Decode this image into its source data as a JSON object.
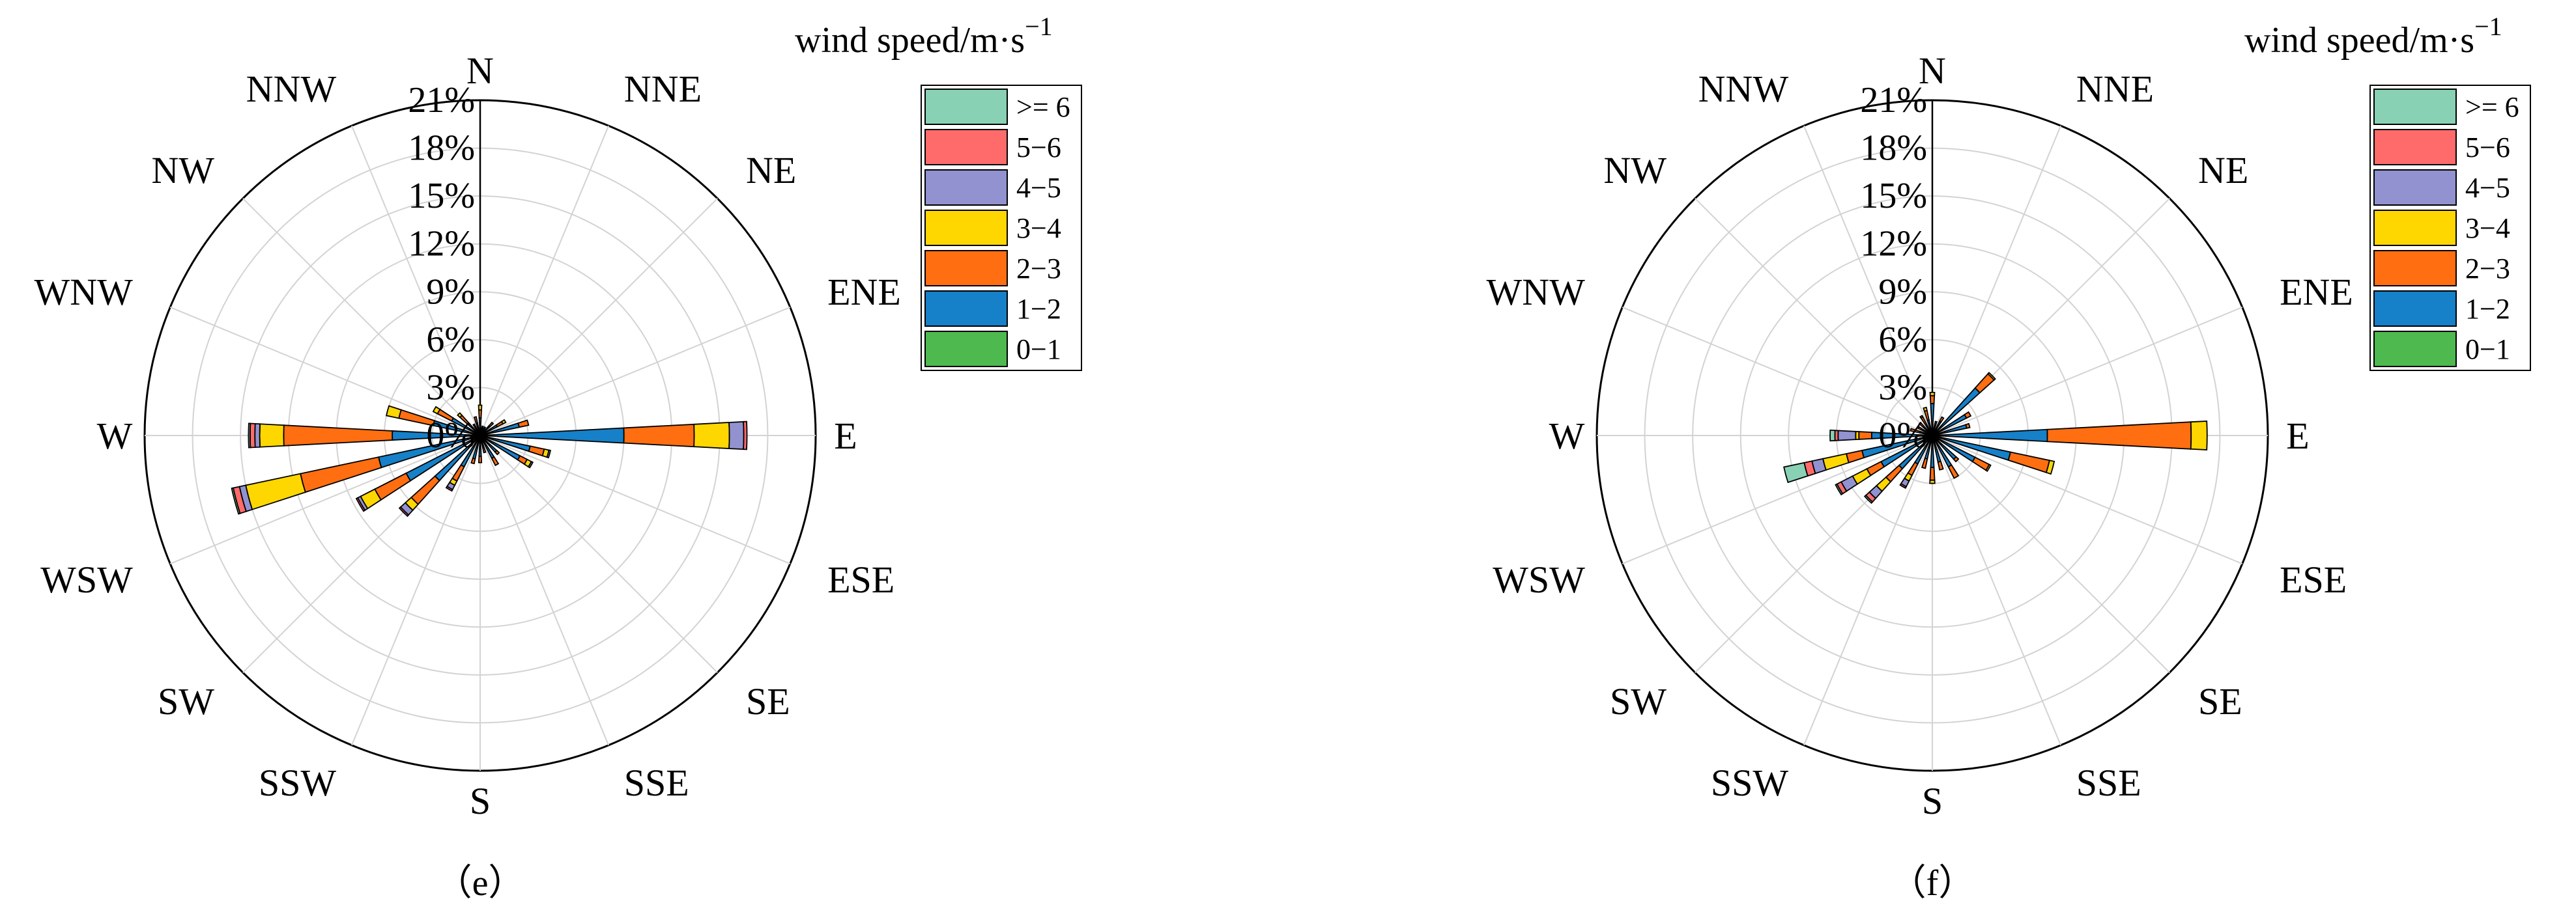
{
  "chart_data": [
    {
      "type": "wind-rose",
      "panel_label": "（e）",
      "legend_title": "wind speed/m·s",
      "legend_title_exponent": "−1",
      "radial_ticks": [
        "0%",
        "3%",
        "6%",
        "9%",
        "12%",
        "15%",
        "18%",
        "21%"
      ],
      "radial_values": [
        0,
        3,
        6,
        9,
        12,
        15,
        18,
        21
      ],
      "rmax": 21,
      "directions": [
        "N",
        "NNE",
        "NE",
        "ENE",
        "E",
        "ESE",
        "SE",
        "SSE",
        "S",
        "SSW",
        "SW",
        "WSW",
        "W",
        "WNW",
        "NW",
        "NNW"
      ],
      "sector_directions_deg": [
        0,
        15,
        30,
        45,
        60,
        75,
        90,
        105,
        120,
        135,
        150,
        165,
        180,
        195,
        210,
        225,
        240,
        255,
        270,
        285,
        300,
        315,
        330,
        345
      ],
      "legend": [
        ">= 6",
        "5−6",
        "4−5",
        "3−4",
        "2−3",
        "1−2",
        "0−1"
      ],
      "series": [
        {
          "name": "0−1",
          "color": "#4DB94F",
          "values": [
            0,
            0,
            0,
            0,
            0,
            0,
            0,
            0,
            0,
            0,
            0,
            0,
            0,
            0,
            0,
            0,
            0,
            0,
            0,
            0,
            0,
            0,
            0,
            0
          ]
        },
        {
          "name": "1−2",
          "color": "#1680C8",
          "values": [
            1.1,
            0.5,
            0.5,
            0.8,
            1.2,
            2.5,
            9.0,
            3.2,
            2.8,
            1.4,
            1.6,
            0.8,
            1.3,
            1.5,
            2.2,
            3.8,
            5.2,
            6.5,
            5.5,
            3.0,
            2.0,
            1.0,
            0.6,
            0.8
          ]
        },
        {
          "name": "2−3",
          "color": "#FF6E10",
          "values": [
            0.5,
            0.1,
            0.1,
            0.3,
            0.4,
            0.6,
            4.4,
            0.9,
            0.5,
            0.2,
            0.5,
            0.3,
            0.4,
            0.3,
            1.0,
            2.0,
            2.2,
            5.0,
            6.8,
            2.2,
            1.0,
            0.7,
            0.2,
            0.4
          ]
        },
        {
          "name": "3−4",
          "color": "#FFD700",
          "values": [
            0.3,
            0,
            0,
            0,
            0.2,
            0,
            2.2,
            0.3,
            0.3,
            0,
            0,
            0,
            0,
            0,
            0.3,
            0.5,
            1.0,
            3.5,
            1.5,
            0.8,
            0.3,
            0.2,
            0,
            0
          ]
        },
        {
          "name": "4−5",
          "color": "#9292D0",
          "values": [
            0,
            0,
            0,
            0,
            0,
            0,
            0.9,
            0.1,
            0.1,
            0,
            0,
            0,
            0,
            0,
            0.3,
            0.4,
            0.2,
            0.4,
            0.3,
            0,
            0,
            0,
            0,
            0
          ]
        },
        {
          "name": "5−6",
          "color": "#FF6B6B",
          "values": [
            0,
            0,
            0,
            0,
            0,
            0,
            0.2,
            0,
            0,
            0,
            0,
            0,
            0,
            0,
            0.1,
            0.1,
            0.1,
            0.4,
            0.3,
            0,
            0,
            0,
            0,
            0
          ]
        },
        {
          "name": ">= 6",
          "color": "#88D1B4",
          "values": [
            0,
            0,
            0,
            0,
            0,
            0,
            0,
            0,
            0,
            0,
            0,
            0,
            0,
            0,
            0,
            0,
            0,
            0.1,
            0.1,
            0,
            0,
            0,
            0,
            0
          ]
        }
      ]
    },
    {
      "type": "wind-rose",
      "panel_label": "（f）",
      "legend_title": "wind speed/m·s",
      "legend_title_exponent": "−1",
      "radial_ticks": [
        "0%",
        "3%",
        "6%",
        "9%",
        "12%",
        "15%",
        "18%",
        "21%"
      ],
      "radial_values": [
        0,
        3,
        6,
        9,
        12,
        15,
        18,
        21
      ],
      "rmax": 21,
      "directions": [
        "N",
        "NNE",
        "NE",
        "ENE",
        "E",
        "ESE",
        "SE",
        "SSE",
        "S",
        "SSW",
        "SW",
        "WSW",
        "W",
        "WNW",
        "NW",
        "NNW"
      ],
      "sector_directions_deg": [
        0,
        15,
        30,
        45,
        60,
        75,
        90,
        105,
        120,
        135,
        150,
        165,
        180,
        195,
        210,
        225,
        240,
        255,
        270,
        285,
        300,
        315,
        330,
        345
      ],
      "legend": [
        ">= 6",
        "5−6",
        "4−5",
        "3−4",
        "2−3",
        "1−2",
        "0−1"
      ],
      "series": [
        {
          "name": "0−1",
          "color": "#4DB94F",
          "values": [
            0,
            0,
            0,
            0,
            0,
            0,
            0,
            0,
            0,
            0,
            0,
            0,
            0,
            0,
            0,
            0,
            0,
            0,
            0,
            0,
            0,
            0,
            0,
            0
          ]
        },
        {
          "name": "1−2",
          "color": "#1680C8",
          "values": [
            2.0,
            0.7,
            1.0,
            4.0,
            2.4,
            2.2,
            7.2,
            5.0,
            3.0,
            2.0,
            2.2,
            1.7,
            2.0,
            1.5,
            2.0,
            2.8,
            3.6,
            4.5,
            3.8,
            0.8,
            0.6,
            0.5,
            0.6,
            1.0
          ]
        },
        {
          "name": "2−3",
          "color": "#FF6E10",
          "values": [
            0.5,
            0.2,
            0.3,
            1.2,
            0.3,
            0.2,
            9.0,
            2.5,
            1.0,
            0.2,
            0.8,
            0.5,
            0.8,
            0.6,
            0.8,
            1.1,
            1.0,
            1.0,
            0.8,
            0.6,
            0.4,
            0.6,
            0.7,
            0.6
          ]
        },
        {
          "name": "3−4",
          "color": "#FFD700",
          "values": [
            0.2,
            0,
            0,
            0.1,
            0,
            0,
            1.0,
            0.3,
            0.1,
            0,
            0,
            0,
            0.2,
            0,
            0.4,
            0.8,
            1.0,
            1.5,
            0.2,
            0,
            0,
            0,
            0.1,
            0.2
          ]
        },
        {
          "name": "4−5",
          "color": "#9292D0",
          "values": [
            0,
            0,
            0,
            0,
            0,
            0,
            0,
            0,
            0,
            0,
            0,
            0,
            0,
            0,
            0.4,
            0.6,
            0.8,
            0.7,
            1.1,
            0,
            0,
            0,
            0,
            0
          ]
        },
        {
          "name": "5−6",
          "color": "#FF6B6B",
          "values": [
            0,
            0,
            0,
            0,
            0,
            0,
            0,
            0,
            0,
            0,
            0,
            0,
            0,
            0,
            0.1,
            0.3,
            0.3,
            0.5,
            0.2,
            0,
            0,
            0,
            0,
            0
          ]
        },
        {
          "name": ">= 6",
          "color": "#88D1B4",
          "values": [
            0,
            0,
            0,
            0,
            0,
            0,
            0,
            0,
            0,
            0,
            0,
            0,
            0,
            0,
            0,
            0.1,
            0.1,
            1.3,
            0.3,
            0,
            0,
            0,
            0,
            0
          ]
        }
      ]
    }
  ]
}
